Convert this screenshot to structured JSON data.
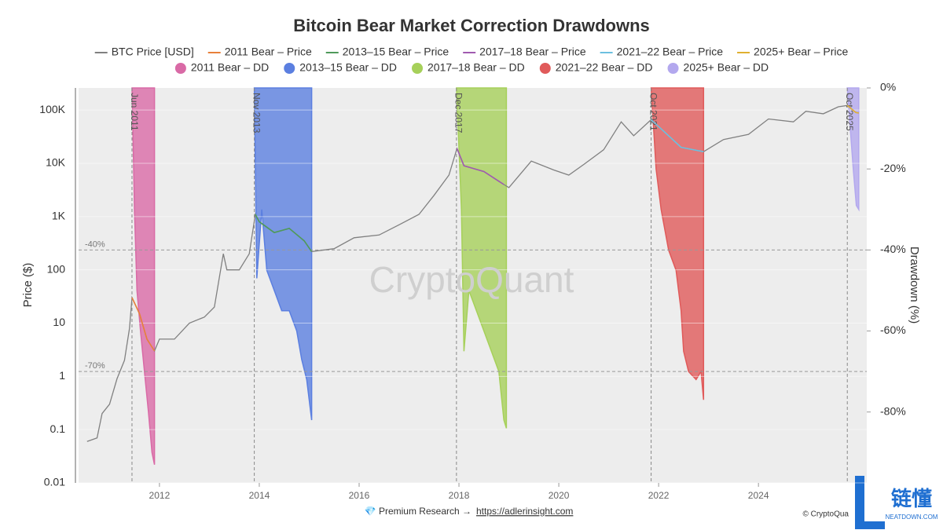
{
  "chart_data": {
    "type": "line",
    "title": "Bitcoin Bear Market Correction Drawdowns",
    "y_label": "Price ($)",
    "y2_label": "Drawdown (%)",
    "log_y": true,
    "grid": true,
    "legend": "top",
    "xlim": [
      2010.38,
      2026.17
    ],
    "xticks": [
      2012,
      2014,
      2016,
      2018,
      2020,
      2022,
      2024
    ],
    "ylim": [
      0.01,
      260000
    ],
    "yticks": [
      0.01,
      0.1,
      1,
      10,
      100,
      {
        "value": 1000,
        "label": "1K"
      },
      {
        "value": 10000,
        "label": "10K"
      },
      {
        "value": 100000,
        "label": "100K"
      }
    ],
    "y2lim": [
      -97.5,
      0
    ],
    "y2ticks": [
      {
        "value": 0,
        "label": "0%"
      },
      {
        "value": -20,
        "label": "-20%"
      },
      {
        "value": -40,
        "label": "-40%"
      },
      {
        "value": -60,
        "label": "-60%"
      },
      {
        "value": -80,
        "label": "-80%"
      }
    ],
    "reference_lines": [
      {
        "value": -40,
        "label": "-40%"
      },
      {
        "value": -70,
        "label": "-70%"
      }
    ],
    "markers": [
      {
        "x": 2011.45,
        "label": "Jun 2011"
      },
      {
        "x": 2013.9,
        "label": "Nov 2013"
      },
      {
        "x": 2017.95,
        "label": "Dec 2017"
      },
      {
        "x": 2021.85,
        "label": "Oct 2021"
      },
      {
        "x": 2025.78,
        "label": "Oct 2025"
      }
    ],
    "series": [
      {
        "name": "BTC Price [USD]",
        "type": "line",
        "color": "#808080",
        "x": [
          2010.55,
          2010.75,
          2010.85,
          2011.0,
          2011.15,
          2011.3,
          2011.4,
          2011.45,
          2011.6,
          2011.75,
          2011.9,
          2012.0,
          2012.3,
          2012.6,
          2012.9,
          2013.1,
          2013.28,
          2013.35,
          2013.6,
          2013.8,
          2013.92,
          2014.0,
          2014.3,
          2014.6,
          2014.9,
          2015.05,
          2015.5,
          2015.9,
          2016.4,
          2016.8,
          2017.2,
          2017.5,
          2017.8,
          2017.96,
          2018.1,
          2018.5,
          2018.9,
          2019.0,
          2019.45,
          2019.9,
          2020.2,
          2020.5,
          2020.9,
          2021.25,
          2021.5,
          2021.85,
          2022.1,
          2022.45,
          2022.9,
          2023.3,
          2023.8,
          2024.2,
          2024.7,
          2024.95,
          2025.3,
          2025.6,
          2025.78,
          2025.95,
          2026.01
        ],
        "values": [
          0.06,
          0.07,
          0.2,
          0.3,
          0.9,
          2,
          8,
          30,
          15,
          5,
          3,
          5,
          5,
          10,
          13,
          20,
          200,
          100,
          100,
          200,
          1100,
          800,
          500,
          600,
          350,
          220,
          250,
          400,
          450,
          700,
          1100,
          2500,
          6000,
          19000,
          9000,
          7000,
          4000,
          3500,
          11000,
          7500,
          6000,
          9500,
          18000,
          60000,
          33000,
          66000,
          40000,
          20000,
          16500,
          28000,
          35000,
          68000,
          60000,
          95000,
          85000,
          115000,
          122000,
          90000,
          88000
        ]
      },
      {
        "name": "2011 Bear – Price",
        "type": "line",
        "color": "#e8803a",
        "x": [
          2011.45,
          2011.6,
          2011.75,
          2011.9
        ],
        "values": [
          30,
          15,
          5,
          3
        ]
      },
      {
        "name": "2013–15 Bear – Price",
        "type": "line",
        "color": "#4f9a5a",
        "x": [
          2013.92,
          2014.0,
          2014.3,
          2014.6,
          2014.9,
          2015.05
        ],
        "values": [
          1100,
          800,
          500,
          600,
          350,
          220
        ]
      },
      {
        "name": "2017–18 Bear – Price",
        "type": "line",
        "color": "#a05ab0",
        "x": [
          2017.96,
          2018.1,
          2018.5,
          2018.9
        ],
        "values": [
          19000,
          9000,
          7000,
          4000
        ]
      },
      {
        "name": "2021–22 Bear – Price",
        "type": "line",
        "color": "#6cc0e0",
        "x": [
          2021.85,
          2022.1,
          2022.45,
          2022.9
        ],
        "values": [
          66000,
          40000,
          20000,
          16500
        ]
      },
      {
        "name": "2025+ Bear – Price",
        "type": "line",
        "color": "#e0b030",
        "x": [
          2025.78,
          2025.95,
          2026.01
        ],
        "values": [
          122000,
          90000,
          88000
        ]
      },
      {
        "name": "2011 Bear – DD",
        "type": "area",
        "axis": "y2",
        "color": "#d96aa6",
        "x": [
          2011.45,
          2011.5,
          2011.55,
          2011.62,
          2011.7,
          2011.78,
          2011.85,
          2011.9
        ],
        "values": [
          0,
          -30,
          -50,
          -60,
          -70,
          -80,
          -90,
          -93
        ]
      },
      {
        "name": "2013–15 Bear – DD",
        "type": "area",
        "axis": "y2",
        "color": "#5b7fe0",
        "x": [
          2013.9,
          2013.95,
          2014.05,
          2014.15,
          2014.3,
          2014.45,
          2014.6,
          2014.75,
          2014.85,
          2014.95,
          2015.05
        ],
        "values": [
          0,
          -47,
          -30,
          -45,
          -50,
          -55,
          -55,
          -60,
          -67,
          -72,
          -82
        ]
      },
      {
        "name": "2017–18 Bear – DD",
        "type": "area",
        "axis": "y2",
        "color": "#a6d05a",
        "x": [
          2017.95,
          2018.05,
          2018.1,
          2018.2,
          2018.35,
          2018.5,
          2018.65,
          2018.8,
          2018.9,
          2018.95
        ],
        "values": [
          0,
          -30,
          -65,
          -50,
          -55,
          -60,
          -65,
          -70,
          -82,
          -84
        ]
      },
      {
        "name": "2021–22 Bear – DD",
        "type": "area",
        "axis": "y2",
        "color": "#e05a5a",
        "x": [
          2021.85,
          2021.95,
          2022.05,
          2022.2,
          2022.35,
          2022.45,
          2022.5,
          2022.6,
          2022.75,
          2022.85,
          2022.9
        ],
        "values": [
          0,
          -20,
          -30,
          -40,
          -45,
          -55,
          -65,
          -70,
          -72,
          -70,
          -77
        ]
      },
      {
        "name": "2025+ Bear – DD",
        "type": "area",
        "axis": "y2",
        "color": "#b3a8ee",
        "x": [
          2025.78,
          2025.84,
          2025.9,
          2025.96,
          2026.01
        ],
        "values": [
          0,
          -10,
          -20,
          -29,
          -30
        ]
      }
    ],
    "watermark": "CryptoQuant",
    "footer": {
      "text": "💎 Premium Research →",
      "link": "https://adlerinsight.com"
    },
    "credit": "© CryptoQua"
  },
  "logo": {
    "text": "链懂",
    "sub": "NEATDOWN.COM"
  }
}
